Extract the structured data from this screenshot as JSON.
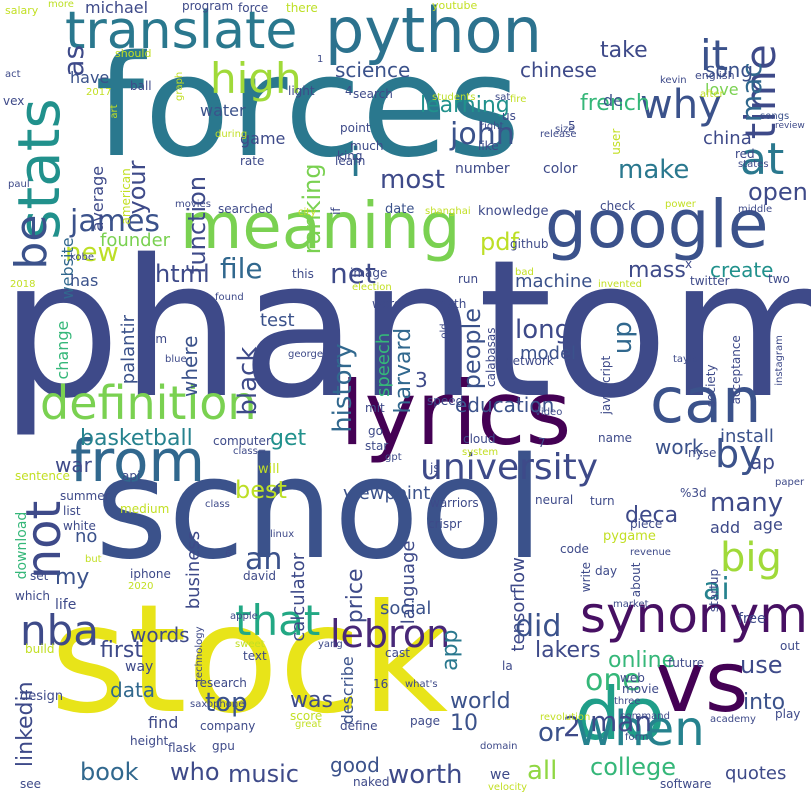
{
  "palette": {
    "dark_purple": "#440154",
    "indigo": "#3b528b",
    "blue": "#31688e",
    "teal": "#21918c",
    "green": "#35b779",
    "lime": "#90d743",
    "yellow": "#fde725",
    "background": "#ffffff"
  },
  "words": [
    {
      "text": "phantom",
      "color": "#3e4a89"
    },
    {
      "text": "school",
      "color": "#3b528b"
    },
    {
      "text": "forces",
      "color": "#2a788e"
    },
    {
      "text": "stock",
      "color": "#e8e419"
    },
    {
      "text": "python",
      "color": "#2c728e"
    },
    {
      "text": "lyrics",
      "color": "#440154"
    },
    {
      "text": "google",
      "color": "#3b528b"
    },
    {
      "text": "meaning",
      "color": "#7ad151"
    },
    {
      "text": "translate",
      "color": "#2a788e"
    },
    {
      "text": "stats",
      "color": "#21918c"
    },
    {
      "text": "definition",
      "color": "#7ad151"
    },
    {
      "text": "from",
      "color": "#31688e"
    },
    {
      "text": "can",
      "color": "#3b528b"
    },
    {
      "text": "vs",
      "color": "#440154"
    },
    {
      "text": "do",
      "color": "#1f9e89"
    },
    {
      "text": "synonym",
      "color": "#471063"
    },
    {
      "text": "when",
      "color": "#26828e"
    },
    {
      "text": "university",
      "color": "#3e4a89"
    },
    {
      "text": "high",
      "color": "#a0da39"
    },
    {
      "text": "why",
      "color": "#3b528b"
    },
    {
      "text": "time",
      "color": "#3e4a89"
    },
    {
      "text": "it",
      "color": "#3b528b"
    },
    {
      "text": "at",
      "color": "#2a788e"
    },
    {
      "text": "be",
      "color": "#3b528b"
    },
    {
      "text": "i",
      "color": "#2a788e"
    },
    {
      "text": "not",
      "color": "#3e4a89"
    },
    {
      "text": "by",
      "color": "#3b528b"
    },
    {
      "text": "big",
      "color": "#a0da39"
    },
    {
      "text": "nba",
      "color": "#3e4a89"
    },
    {
      "text": "that",
      "color": "#22a884"
    },
    {
      "text": "lebron",
      "color": "#482878"
    },
    {
      "text": "an",
      "color": "#3b528b"
    },
    {
      "text": "as",
      "color": "#3e4a89"
    },
    {
      "text": "john",
      "color": "#3b528b"
    },
    {
      "text": "james",
      "color": "#3b528b"
    },
    {
      "text": "mac",
      "color": "#31688e"
    },
    {
      "text": "pdf",
      "color": "#bddf26"
    },
    {
      "text": "new",
      "color": "#bddf26"
    },
    {
      "text": "net",
      "color": "#3e4a89"
    },
    {
      "text": "file",
      "color": "#31688e"
    },
    {
      "text": "html",
      "color": "#3e4a89"
    },
    {
      "text": "ranking",
      "color": "#7ad151"
    },
    {
      "text": "function",
      "color": "#3e4a89"
    },
    {
      "text": "your",
      "color": "#3e4a89"
    },
    {
      "text": "most",
      "color": "#3e4a89"
    },
    {
      "text": "make",
      "color": "#2a788e"
    },
    {
      "text": "open",
      "color": "#3e4a89"
    },
    {
      "text": "china",
      "color": "#3e4a89"
    },
    {
      "text": "french",
      "color": "#35b779"
    },
    {
      "text": "learning",
      "color": "#21918c"
    },
    {
      "text": "take",
      "color": "#3e4a89"
    },
    {
      "text": "science",
      "color": "#3b528b"
    },
    {
      "text": "chinese",
      "color": "#3e4a89"
    },
    {
      "text": "song",
      "color": "#3b528b"
    },
    {
      "text": "love",
      "color": "#7ad151"
    },
    {
      "text": "de",
      "color": "#3b528b"
    },
    {
      "text": "water",
      "color": "#3b528b"
    },
    {
      "text": "game",
      "color": "#3e4a89"
    },
    {
      "text": "average",
      "color": "#3e4a89"
    },
    {
      "text": "website",
      "color": "#31688e"
    },
    {
      "text": "founder",
      "color": "#7ad151"
    },
    {
      "text": "mass",
      "color": "#3e4a89"
    },
    {
      "text": "create",
      "color": "#21918c"
    },
    {
      "text": "machine",
      "color": "#3b528b"
    },
    {
      "text": "history",
      "color": "#31688e"
    },
    {
      "text": "long",
      "color": "#3e4a89"
    },
    {
      "text": "up",
      "color": "#31688e"
    },
    {
      "text": "people",
      "color": "#3b528b"
    },
    {
      "text": "harvard",
      "color": "#31688e"
    },
    {
      "text": "education",
      "color": "#3b528b"
    },
    {
      "text": "test",
      "color": "#3b528b"
    },
    {
      "text": "black",
      "color": "#3e4a89"
    },
    {
      "text": "where",
      "color": "#3b528b"
    },
    {
      "text": "palantir",
      "color": "#3b528b"
    },
    {
      "text": "speech",
      "color": "#35b779"
    },
    {
      "text": "model",
      "color": "#3b528b"
    },
    {
      "text": "basketball",
      "color": "#26828e"
    },
    {
      "text": "get",
      "color": "#21918c"
    },
    {
      "text": "best",
      "color": "#bddf26"
    },
    {
      "text": "war",
      "color": "#3e4a89"
    },
    {
      "text": "work",
      "color": "#3b528b"
    },
    {
      "text": "ap",
      "color": "#3e4a89"
    },
    {
      "text": "many",
      "color": "#3e4a89"
    },
    {
      "text": "install",
      "color": "#3b528b"
    },
    {
      "text": "viewpoint",
      "color": "#3b528b"
    },
    {
      "text": "deca",
      "color": "#3e4a89"
    },
    {
      "text": "ai",
      "color": "#26828e"
    },
    {
      "text": "my",
      "color": "#3b528b"
    },
    {
      "text": "no",
      "color": "#3b528b"
    },
    {
      "text": "business",
      "color": "#3e4a89"
    },
    {
      "text": "price",
      "color": "#3e4a89"
    },
    {
      "text": "language",
      "color": "#3e4a89"
    },
    {
      "text": "tensorflow",
      "color": "#3e4a89"
    },
    {
      "text": "calculator",
      "color": "#3e4a89"
    },
    {
      "text": "did",
      "color": "#3b528b"
    },
    {
      "text": "one",
      "color": "#35b779"
    },
    {
      "text": "online",
      "color": "#35b779"
    },
    {
      "text": "use",
      "color": "#3e4a89"
    },
    {
      "text": "lakers",
      "color": "#3e4a89"
    },
    {
      "text": "app",
      "color": "#2a788e"
    },
    {
      "text": "social",
      "color": "#3b528b"
    },
    {
      "text": "first",
      "color": "#3e4a89"
    },
    {
      "text": "words",
      "color": "#3e4a89"
    },
    {
      "text": "top",
      "color": "#3b528b"
    },
    {
      "text": "was",
      "color": "#3e4a89"
    },
    {
      "text": "data",
      "color": "#31688e"
    },
    {
      "text": "or",
      "color": "#3b528b"
    },
    {
      "text": "2",
      "color": "#3e4a89"
    },
    {
      "text": "man",
      "color": "#3e4a89"
    },
    {
      "text": "into",
      "color": "#3b528b"
    },
    {
      "text": "world",
      "color": "#3b528b"
    },
    {
      "text": "10",
      "color": "#3b528b"
    },
    {
      "text": "book",
      "color": "#31688e"
    },
    {
      "text": "who",
      "color": "#3e4a89"
    },
    {
      "text": "music",
      "color": "#3e4a89"
    },
    {
      "text": "worth",
      "color": "#3e4a89"
    },
    {
      "text": "all",
      "color": "#90d743"
    },
    {
      "text": "college",
      "color": "#35b779"
    },
    {
      "text": "quotes",
      "color": "#3e4a89"
    },
    {
      "text": "good",
      "color": "#3b528b"
    },
    {
      "text": "linkedin",
      "color": "#3e4a89"
    },
    {
      "text": "find",
      "color": "#3e4a89"
    },
    {
      "text": "describe",
      "color": "#3b528b"
    },
    {
      "text": "michael",
      "color": "#3e4a89"
    },
    {
      "text": "program",
      "color": "#3e4a89"
    },
    {
      "text": "force",
      "color": "#3e4a89"
    },
    {
      "text": "there",
      "color": "#bddf26"
    },
    {
      "text": "youtube",
      "color": "#c2df23"
    },
    {
      "text": "salary",
      "color": "#c2df23"
    },
    {
      "text": "more",
      "color": "#bddf26"
    },
    {
      "text": "have",
      "color": "#3b528b"
    },
    {
      "text": "act",
      "color": "#3e4a89"
    },
    {
      "text": "vex",
      "color": "#3e4a89"
    },
    {
      "text": "ball",
      "color": "#3e4a89"
    },
    {
      "text": "light",
      "color": "#3e4a89"
    },
    {
      "text": "search",
      "color": "#3e4a89"
    },
    {
      "text": "students",
      "color": "#bddf26"
    },
    {
      "text": "sat",
      "color": "#3e4a89"
    },
    {
      "text": "fire",
      "color": "#c2df23"
    },
    {
      "text": "after",
      "color": "#c2df23"
    },
    {
      "text": "kevin",
      "color": "#3e4a89"
    },
    {
      "text": "english",
      "color": "#3e4a89"
    },
    {
      "text": "should",
      "color": "#c2df23"
    },
    {
      "text": "us",
      "color": "#3e4a89"
    },
    {
      "text": "right",
      "color": "#3e4a89"
    },
    {
      "text": "release",
      "color": "#3e4a89"
    },
    {
      "text": "songs",
      "color": "#3b528b"
    },
    {
      "text": "review",
      "color": "#3e4a89"
    },
    {
      "text": "point",
      "color": "#3e4a89"
    },
    {
      "text": "king",
      "color": "#3e4a89"
    },
    {
      "text": "much",
      "color": "#3e4a89"
    },
    {
      "text": "learn",
      "color": "#3e4a89"
    },
    {
      "text": "number",
      "color": "#3e4a89"
    },
    {
      "text": "color",
      "color": "#3e4a89"
    },
    {
      "text": "red",
      "color": "#3e4a89"
    },
    {
      "text": "states",
      "color": "#3e4a89"
    },
    {
      "text": "rate",
      "color": "#3e4a89"
    },
    {
      "text": "searched",
      "color": "#3e4a89"
    },
    {
      "text": "date",
      "color": "#3b528b"
    },
    {
      "text": "knowledge",
      "color": "#3e4a89"
    },
    {
      "text": "check",
      "color": "#3e4a89"
    },
    {
      "text": "power",
      "color": "#c2df23"
    },
    {
      "text": "middle",
      "color": "#3e4a89"
    },
    {
      "text": "kobe",
      "color": "#3e4a89"
    },
    {
      "text": "city",
      "color": "#c2df23"
    },
    {
      "text": "shanghai",
      "color": "#c2df23"
    },
    {
      "text": "github",
      "color": "#3e4a89"
    },
    {
      "text": "run",
      "color": "#3e4a89"
    },
    {
      "text": "has",
      "color": "#3b528b"
    },
    {
      "text": "this",
      "color": "#3e4a89"
    },
    {
      "text": "image",
      "color": "#3e4a89"
    },
    {
      "text": "election",
      "color": "#c2df23"
    },
    {
      "text": "invented",
      "color": "#c2df23"
    },
    {
      "text": "twitter",
      "color": "#3e4a89"
    },
    {
      "text": "two",
      "color": "#3e4a89"
    },
    {
      "text": "found",
      "color": "#3e4a89"
    },
    {
      "text": "math",
      "color": "#3e4a89"
    },
    {
      "text": "bad",
      "color": "#c2df23"
    },
    {
      "text": "change",
      "color": "#35b779"
    },
    {
      "text": "am",
      "color": "#3e4a89"
    },
    {
      "text": "george",
      "color": "#3e4a89"
    },
    {
      "text": "word",
      "color": "#3e4a89"
    },
    {
      "text": "old",
      "color": "#3e4a89"
    },
    {
      "text": "calabasas",
      "color": "#3e4a89"
    },
    {
      "text": "network",
      "color": "#3e4a89"
    },
    {
      "text": "javascript",
      "color": "#3e4a89"
    },
    {
      "text": "taylor",
      "color": "#3e4a89"
    },
    {
      "text": "society",
      "color": "#3e4a89"
    },
    {
      "text": "acceptance",
      "color": "#3e4a89"
    },
    {
      "text": "instagram",
      "color": "#3e4a89"
    },
    {
      "text": "blue",
      "color": "#3e4a89"
    },
    {
      "text": "mit",
      "color": "#3e4a89"
    },
    {
      "text": "speed",
      "color": "#3e4a89"
    },
    {
      "text": "video",
      "color": "#3e4a89"
    },
    {
      "text": "computer",
      "color": "#3e4a89"
    },
    {
      "text": "go",
      "color": "#3e4a89"
    },
    {
      "text": "star",
      "color": "#3e4a89"
    },
    {
      "text": "cloud",
      "color": "#3e4a89"
    },
    {
      "text": "name",
      "color": "#3e4a89"
    },
    {
      "text": "7",
      "color": "#3e4a89"
    },
    {
      "text": "gpt",
      "color": "#3e4a89"
    },
    {
      "text": "system",
      "color": "#c2df23"
    },
    {
      "text": "nyse",
      "color": "#3e4a89"
    },
    {
      "text": "js",
      "color": "#3e4a89"
    },
    {
      "text": "sentence",
      "color": "#c2df23"
    },
    {
      "text": "class=",
      "color": "#3e4a89"
    },
    {
      "text": "will",
      "color": "#c2df23"
    },
    {
      "text": "api",
      "color": "#3e4a89"
    },
    {
      "text": "summer",
      "color": "#3e4a89"
    },
    {
      "text": "%3d",
      "color": "#3e4a89"
    },
    {
      "text": "paper",
      "color": "#3e4a89"
    },
    {
      "text": "warriors",
      "color": "#3e4a89"
    },
    {
      "text": "turn",
      "color": "#3e4a89"
    },
    {
      "text": "neural",
      "color": "#3e4a89"
    },
    {
      "text": "class",
      "color": "#3e4a89"
    },
    {
      "text": "medium",
      "color": "#c2df23"
    },
    {
      "text": "list",
      "color": "#3e4a89"
    },
    {
      "text": "white",
      "color": "#3e4a89"
    },
    {
      "text": "crispr",
      "color": "#3e4a89"
    },
    {
      "text": "linux",
      "color": "#3e4a89"
    },
    {
      "text": "add",
      "color": "#3e4a89"
    },
    {
      "text": "age",
      "color": "#3e4a89"
    },
    {
      "text": "pygame",
      "color": "#c2df23"
    },
    {
      "text": "piece",
      "color": "#3e4a89"
    },
    {
      "text": "code",
      "color": "#3e4a89"
    },
    {
      "text": "revenue",
      "color": "#3e4a89"
    },
    {
      "text": "download",
      "color": "#35b779"
    },
    {
      "text": "david",
      "color": "#3e4a89"
    },
    {
      "text": "iphone",
      "color": "#3e4a89"
    },
    {
      "text": "set",
      "color": "#3e4a89"
    },
    {
      "text": "which",
      "color": "#3e4a89"
    },
    {
      "text": "2020",
      "color": "#c2df23"
    },
    {
      "text": "but",
      "color": "#c2df23"
    },
    {
      "text": "write",
      "color": "#3e4a89"
    },
    {
      "text": "day",
      "color": "#3e4a89"
    },
    {
      "text": "about",
      "color": "#3e4a89"
    },
    {
      "text": "startup",
      "color": "#3e4a89"
    },
    {
      "text": "free",
      "color": "#3e4a89"
    },
    {
      "text": "life",
      "color": "#3e4a89"
    },
    {
      "text": "technology",
      "color": "#3e4a89"
    },
    {
      "text": "apple",
      "color": "#3e4a89"
    },
    {
      "text": "market",
      "color": "#3e4a89"
    },
    {
      "text": "build",
      "color": "#c2df23"
    },
    {
      "text": "text",
      "color": "#3e4a89"
    },
    {
      "text": "sweet",
      "color": "#c2df23"
    },
    {
      "text": "cast",
      "color": "#3e4a89"
    },
    {
      "text": "yang",
      "color": "#3e4a89"
    },
    {
      "text": "future",
      "color": "#3e4a89"
    },
    {
      "text": "out",
      "color": "#3e4a89"
    },
    {
      "text": "way",
      "color": "#3e4a89"
    },
    {
      "text": "la",
      "color": "#3e4a89"
    },
    {
      "text": "web",
      "color": "#3e4a89"
    },
    {
      "text": "research",
      "color": "#3e4a89"
    },
    {
      "text": "16",
      "color": "#3e4a89"
    },
    {
      "text": "what's",
      "color": "#3e4a89"
    },
    {
      "text": "three",
      "color": "#3e4a89"
    },
    {
      "text": "movie",
      "color": "#3e4a89"
    },
    {
      "text": "design",
      "color": "#3e4a89"
    },
    {
      "text": "saxophone",
      "color": "#3e4a89"
    },
    {
      "text": "score",
      "color": "#c2df23"
    },
    {
      "text": "great",
      "color": "#c2df23"
    },
    {
      "text": "revolution",
      "color": "#c2df23"
    },
    {
      "text": "command",
      "color": "#3e4a89"
    },
    {
      "text": "play",
      "color": "#3e4a89"
    },
    {
      "text": "height",
      "color": "#3e4a89"
    },
    {
      "text": "company",
      "color": "#3e4a89"
    },
    {
      "text": "page",
      "color": "#3e4a89"
    },
    {
      "text": "academy",
      "color": "#3e4a89"
    },
    {
      "text": "flask",
      "color": "#3e4a89"
    },
    {
      "text": "gpu",
      "color": "#3e4a89"
    },
    {
      "text": "define",
      "color": "#3e4a89"
    },
    {
      "text": "form",
      "color": "#3e4a89"
    },
    {
      "text": "domain",
      "color": "#3e4a89"
    },
    {
      "text": "see",
      "color": "#3e4a89"
    },
    {
      "text": "naked",
      "color": "#3e4a89"
    },
    {
      "text": "we",
      "color": "#3e4a89"
    },
    {
      "text": "velocity",
      "color": "#c2df23"
    },
    {
      "text": "software",
      "color": "#3e4a89"
    },
    {
      "text": "graph",
      "color": "#c2df23"
    },
    {
      "text": "2017",
      "color": "#c2df23"
    },
    {
      "text": "art",
      "color": "#c2df23"
    },
    {
      "text": "american",
      "color": "#c2df23"
    },
    {
      "text": "movies",
      "color": "#3e4a89"
    },
    {
      "text": "during",
      "color": "#c2df23"
    },
    {
      "text": "paul",
      "color": "#3e4a89"
    },
    {
      "text": "size",
      "color": "#3e4a89"
    },
    {
      "text": "user",
      "color": "#c2df23"
    },
    {
      "text": "5",
      "color": "#3e4a89"
    },
    {
      "text": "like",
      "color": "#3e4a89"
    },
    {
      "text": "if",
      "color": "#3e4a89"
    },
    {
      "text": "x",
      "color": "#3e4a89"
    },
    {
      "text": "2018",
      "color": "#c2df23"
    },
    {
      "text": "4",
      "color": "#3e4a89"
    },
    {
      "text": "1",
      "color": "#3e4a89"
    },
    {
      "text": "6",
      "color": "#3e4a89"
    },
    {
      "text": "3",
      "color": "#3e4a89"
    }
  ]
}
